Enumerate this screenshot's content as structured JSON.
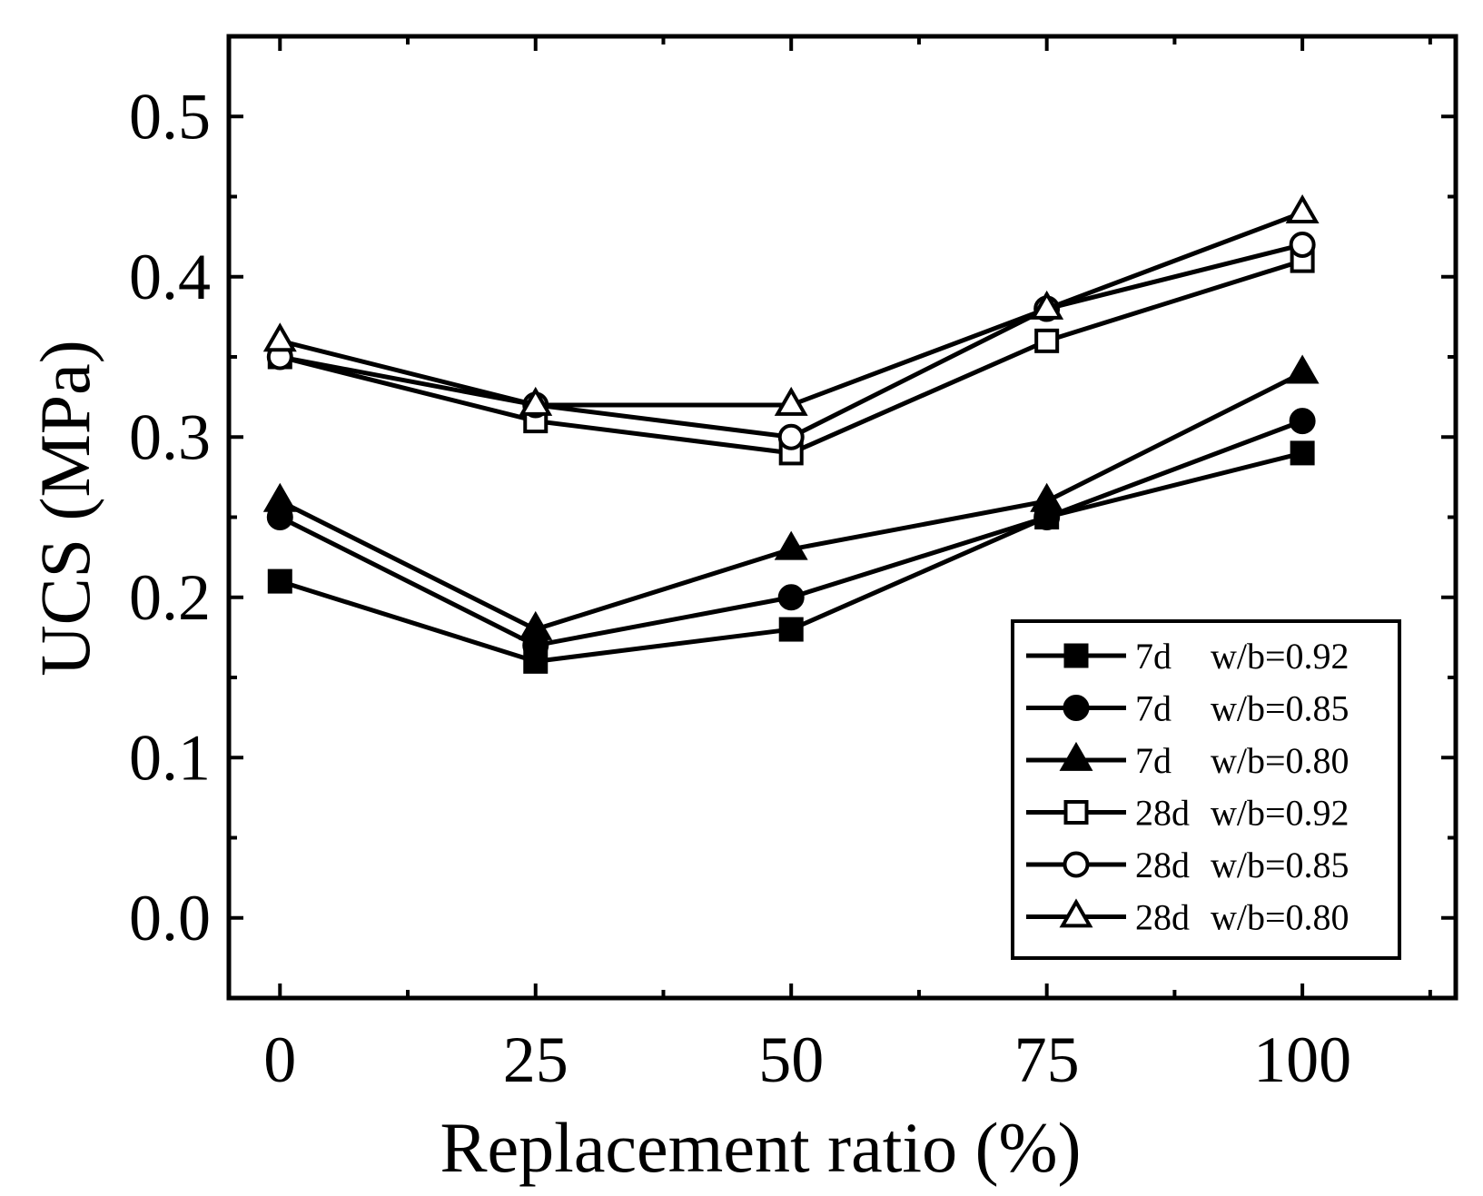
{
  "chart_data": {
    "type": "line",
    "title": "",
    "xlabel": "Replacement ratio (%)",
    "ylabel": "UCS (MPa)",
    "x": [
      0,
      25,
      50,
      75,
      100
    ],
    "xlim": [
      -5,
      115
    ],
    "ylim": [
      -0.05,
      0.55
    ],
    "xticks": [
      0,
      25,
      50,
      75,
      100
    ],
    "xtick_labels": [
      "0",
      "25",
      "50",
      "75",
      "100"
    ],
    "yticks": [
      0.0,
      0.1,
      0.2,
      0.3,
      0.4,
      0.5
    ],
    "ytick_labels": [
      "0.0",
      "0.1",
      "0.2",
      "0.3",
      "0.4",
      "0.5"
    ],
    "grid": false,
    "legend_position": "bottom-right",
    "series": [
      {
        "name": "7d w/b=0.92",
        "age": "7d",
        "ratio": "w/b=0.92",
        "marker": "square",
        "filled": true,
        "values": [
          0.21,
          0.16,
          0.18,
          0.25,
          0.29
        ]
      },
      {
        "name": "7d w/b=0.85",
        "age": "7d",
        "ratio": "w/b=0.85",
        "marker": "circle",
        "filled": true,
        "values": [
          0.25,
          0.17,
          0.2,
          0.25,
          0.31
        ]
      },
      {
        "name": "7d w/b=0.80",
        "age": "7d",
        "ratio": "w/b=0.80",
        "marker": "triangle",
        "filled": true,
        "values": [
          0.26,
          0.18,
          0.23,
          0.26,
          0.34
        ]
      },
      {
        "name": "28d w/b=0.92",
        "age": "28d",
        "ratio": "w/b=0.92",
        "marker": "square",
        "filled": false,
        "values": [
          0.35,
          0.31,
          0.29,
          0.36,
          0.41
        ]
      },
      {
        "name": "28d w/b=0.85",
        "age": "28d",
        "ratio": "w/b=0.85",
        "marker": "circle",
        "filled": false,
        "values": [
          0.35,
          0.32,
          0.3,
          0.38,
          0.42
        ]
      },
      {
        "name": "28d w/b=0.80",
        "age": "28d",
        "ratio": "w/b=0.80",
        "marker": "triangle",
        "filled": false,
        "values": [
          0.36,
          0.32,
          0.32,
          0.38,
          0.44
        ]
      }
    ]
  }
}
